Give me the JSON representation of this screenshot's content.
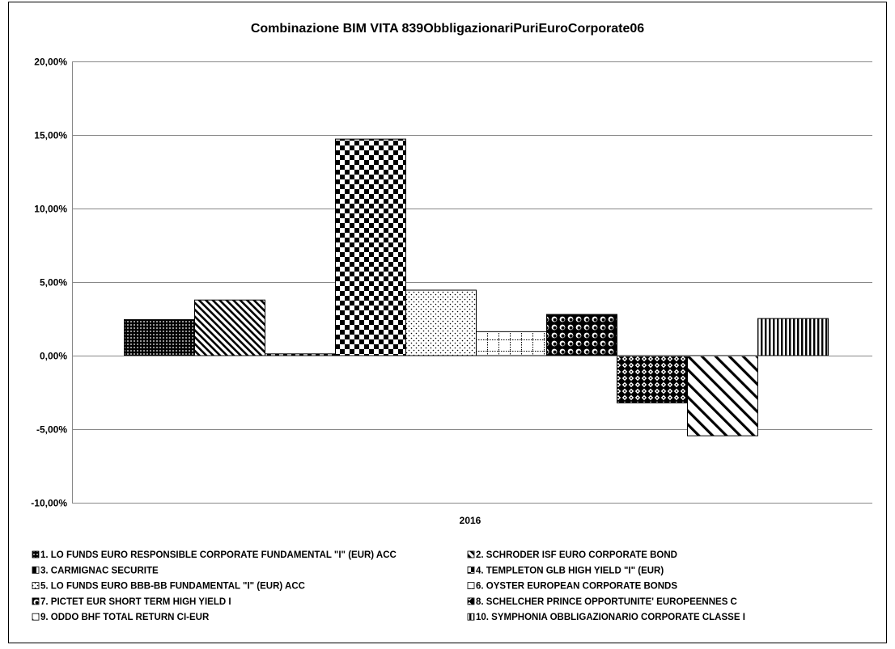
{
  "chart_data": {
    "type": "bar",
    "title": "Combinazione BIM VITA 839ObbligazionariPuriEuroCorporate06",
    "categories": [
      "2016"
    ],
    "ylim": [
      -0.1,
      0.2
    ],
    "yticks": [
      -0.1,
      -0.05,
      0.0,
      0.05,
      0.1,
      0.15,
      0.2
    ],
    "ytick_labels": [
      "-10,00%",
      "-5,00%",
      "0,00%",
      "5,00%",
      "10,00%",
      "15,00%",
      "20,00%"
    ],
    "grid": true,
    "legend_position": "bottom",
    "series": [
      {
        "name": "1. LO FUNDS EURO RESPONSIBLE CORPORATE FUNDAMENTAL \"I\" (EUR) ACC",
        "values": [
          0.0245
        ],
        "pattern": "dots-dense"
      },
      {
        "name": "2. SCHRODER ISF EURO CORPORATE BOND",
        "values": [
          0.0378
        ],
        "pattern": "diag-fine"
      },
      {
        "name": "3. CARMIGNAC SECURITE",
        "values": [
          0.0012
        ],
        "pattern": "vert-half"
      },
      {
        "name": "4. TEMPLETON GLB HIGH YIELD \"I\" (EUR)",
        "values": [
          0.1472
        ],
        "pattern": "checker"
      },
      {
        "name": "5. LO FUNDS EURO BBB-BB FUNDAMENTAL \"I\" (EUR) ACC",
        "values": [
          0.0445
        ],
        "pattern": "dots-sparse"
      },
      {
        "name": "6. OYSTER EUROPEAN CORPORATE BONDS",
        "values": [
          0.0163
        ],
        "pattern": "grid-dotted"
      },
      {
        "name": "7. PICTET EUR SHORT TERM HIGH YIELD I",
        "values": [
          0.028
        ],
        "pattern": "spheres"
      },
      {
        "name": "8. SCHELCHER PRINCE OPPORTUNITE' EUROPEENNES C",
        "values": [
          -0.0322
        ],
        "pattern": "diamond"
      },
      {
        "name": "9. ODDO BHF TOTAL RETURN CI-EUR",
        "values": [
          -0.0545
        ],
        "pattern": "diag-wide"
      },
      {
        "name": "10. SYMPHONIA OBBLIGAZIONARIO CORPORATE CLASSE I",
        "values": [
          0.0252
        ],
        "pattern": "vert-lines"
      }
    ]
  }
}
